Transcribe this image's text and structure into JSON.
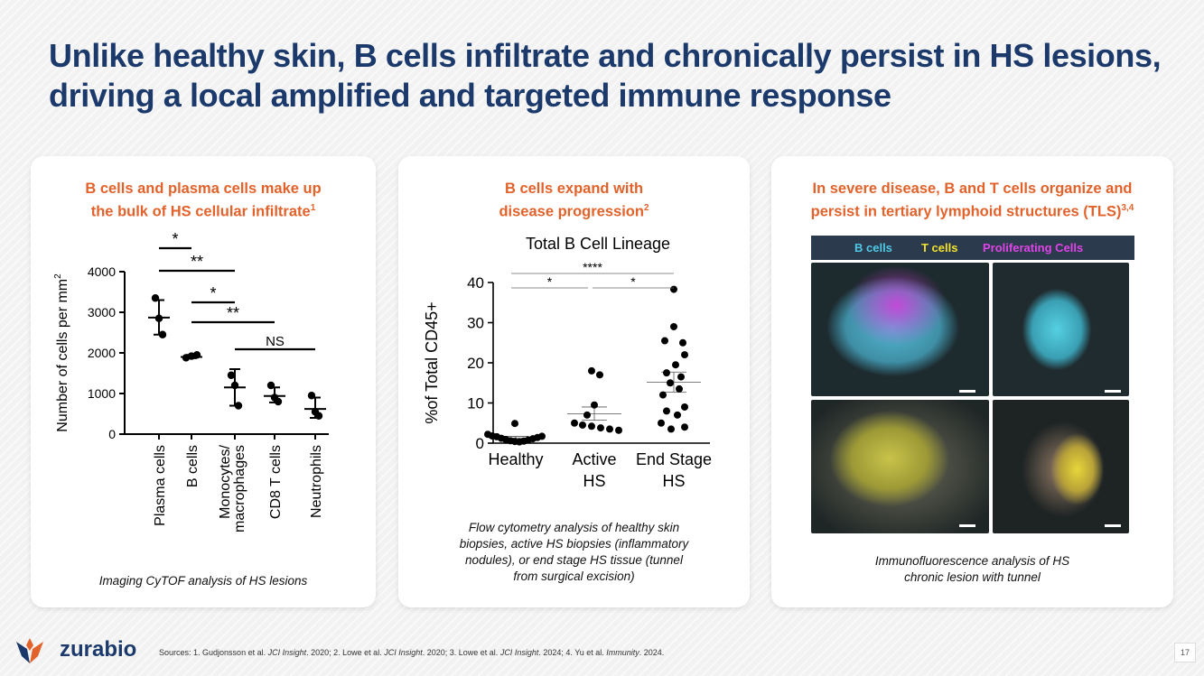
{
  "slide": {
    "title": "Unlike healthy skin, B cells infiltrate and chronically persist in HS lesions, driving a local amplified and targeted immune response",
    "page_number": "17",
    "brand": "zurabio",
    "sources": {
      "prefix": "Sources: ",
      "items": [
        {
          "text": "1. Gudjonsson et al. ",
          "journal": "JCI Insight",
          "year": ". 2020; "
        },
        {
          "text": "2. Lowe et al. ",
          "journal": "JCI Insight",
          "year": ". 2020; "
        },
        {
          "text": "3. Lowe et al. ",
          "journal": "JCI Insight",
          "year": ". 2024; "
        },
        {
          "text": "4. Yu et al. ",
          "journal": "Immunity",
          "year": ". 2024."
        }
      ]
    },
    "colors": {
      "title": "#1b3a6b",
      "accent": "#e2622b",
      "b_cells": "#4ec9e6",
      "t_cells": "#f2e22a",
      "proliferating": "#e044e8"
    }
  },
  "panel1": {
    "heading_line1": "B cells and plasma cells make up",
    "heading_line2": "the bulk of HS cellular infiltrate",
    "heading_sup": "1",
    "caption": "Imaging CyTOF analysis of HS lesions"
  },
  "panel2": {
    "heading_line1": "B cells expand with",
    "heading_line2": "disease progression",
    "heading_sup": "2",
    "caption_lines": [
      "Flow cytometry analysis of healthy skin",
      "biopsies, active HS biopsies (inflammatory",
      "nodules), or end stage HS tissue (tunnel",
      "from surgical excision)"
    ]
  },
  "panel3": {
    "heading_line1": "In severe disease, B and T cells organize and",
    "heading_line2": "persist in tertiary lymphoid structures (TLS)",
    "heading_sup": "3,4",
    "legend": {
      "b_cells": "B cells",
      "t_cells": "T cells",
      "proliferating": "Proliferating Cells"
    },
    "caption_lines": [
      "Immunofluorescence analysis of HS",
      "chronic lesion with tunnel"
    ]
  },
  "chart_data": [
    {
      "type": "scatter",
      "title": "",
      "ylabel": "Number of cells per mm",
      "ylabel_sup": "2",
      "ylim": [
        0,
        4000
      ],
      "yticks": [
        0,
        1000,
        2000,
        3000,
        4000
      ],
      "categories": [
        "Plasma cells",
        "B cells",
        "Monocytes/ macrophages",
        "CD8 T cells",
        "Neutrophils"
      ],
      "points": [
        [
          3350,
          2850,
          2450
        ],
        [
          1880,
          1920,
          1950
        ],
        [
          1450,
          1200,
          700
        ],
        [
          1200,
          900,
          800
        ],
        [
          950,
          550,
          450
        ]
      ],
      "summary": [
        {
          "mean": 2870,
          "low": 2450,
          "high": 3300
        },
        {
          "mean": 1900,
          "low": 1870,
          "high": 1950
        },
        {
          "mean": 1150,
          "low": 700,
          "high": 1600
        },
        {
          "mean": 940,
          "low": 780,
          "high": 1150
        },
        {
          "mean": 620,
          "low": 400,
          "high": 900
        }
      ],
      "significance": [
        {
          "from": 0,
          "to": 1,
          "label": "*"
        },
        {
          "from": 0,
          "to": 2,
          "label": "**"
        },
        {
          "from": 1,
          "to": 2,
          "label": "*"
        },
        {
          "from": 1,
          "to": 3,
          "label": "**"
        },
        {
          "from": 2,
          "to": 4,
          "label": "NS"
        }
      ],
      "grid": false
    },
    {
      "type": "scatter",
      "title": "Total B Cell Lineage",
      "ylabel": "%of Total CD45+",
      "ylim": [
        0,
        40
      ],
      "yticks": [
        0,
        10,
        20,
        30,
        40
      ],
      "categories": [
        "Healthy",
        "Active HS",
        "End Stage HS"
      ],
      "category_lines": [
        [
          "Healthy"
        ],
        [
          "Active",
          "HS"
        ],
        [
          "End Stage",
          "HS"
        ]
      ],
      "points": [
        [
          2.2,
          1.8,
          1.6,
          1.2,
          0.9,
          0.6,
          0.4,
          0.3,
          0.5,
          0.8,
          1.1,
          1.4,
          1.7,
          4.9
        ],
        [
          18.0,
          17.0,
          9.5,
          7.0,
          5.0,
          4.5,
          4.2,
          3.8,
          3.5,
          3.2
        ],
        [
          38.3,
          29.0,
          25.5,
          25.0,
          22.0,
          19.5,
          17.5,
          16.5,
          15.0,
          13.5,
          12.0,
          9.0,
          8.0,
          7.0,
          5.0,
          4.0,
          3.5
        ]
      ],
      "summary": [
        {
          "mean": 1.3,
          "low": 0.9,
          "high": 1.7
        },
        {
          "mean": 7.3,
          "low": 5.7,
          "high": 9.0
        },
        {
          "mean": 15.2,
          "low": 12.7,
          "high": 17.7
        }
      ],
      "significance": [
        {
          "from": 0,
          "to": 1,
          "label": "*"
        },
        {
          "from": 1,
          "to": 2,
          "label": "*"
        },
        {
          "from": 0,
          "to": 2,
          "label": "****"
        }
      ],
      "grid": false
    }
  ]
}
